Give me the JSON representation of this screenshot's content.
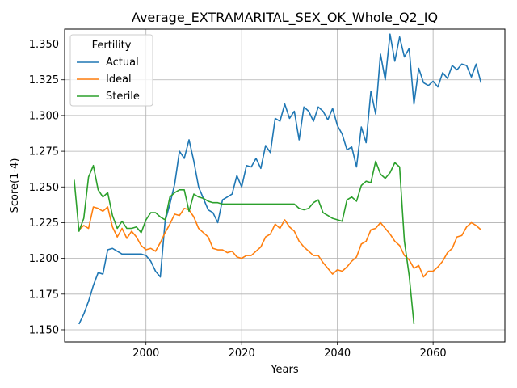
{
  "chart_data": {
    "type": "line",
    "title": "Average_EXTRAMARITAL_SEX_OK_Whole_Q2_IQ",
    "xlabel": "Years",
    "ylabel": "Score(1-4)",
    "xlim": [
      1983.0,
      2075.0
    ],
    "ylim": [
      1.1415,
      1.3605
    ],
    "xticks": [
      2000,
      2020,
      2040,
      2060
    ],
    "yticks": [
      1.15,
      1.175,
      1.2,
      1.225,
      1.25,
      1.275,
      1.3,
      1.325,
      1.35
    ],
    "ytick_labels": [
      "1.150",
      "1.175",
      "1.200",
      "1.225",
      "1.250",
      "1.275",
      "1.300",
      "1.325",
      "1.350"
    ],
    "grid": true,
    "legend": {
      "title": "Fertility",
      "placement": "top-left"
    },
    "series": [
      {
        "name": "Actual",
        "color": "#1f77b4",
        "x": [
          1986,
          1987,
          1988,
          1989,
          1990,
          1991,
          1992,
          1993,
          1994,
          1995,
          1996,
          1997,
          1998,
          1999,
          2000,
          2001,
          2002,
          2003,
          2004,
          2005,
          2006,
          2007,
          2008,
          2009,
          2010,
          2011,
          2012,
          2013,
          2014,
          2015,
          2016,
          2017,
          2018,
          2019,
          2020,
          2021,
          2022,
          2023,
          2024,
          2025,
          2026,
          2027,
          2028,
          2029,
          2030,
          2031,
          2032,
          2033,
          2034,
          2035,
          2036,
          2037,
          2038,
          2039,
          2040,
          2041,
          2042,
          2043,
          2044,
          2045,
          2046,
          2047,
          2048,
          2049,
          2050,
          2051,
          2052,
          2053,
          2054,
          2055,
          2056,
          2057,
          2058,
          2059,
          2060,
          2061,
          2062,
          2063,
          2064,
          2065,
          2066,
          2067,
          2068,
          2069,
          2070
        ],
        "values": [
          1.154,
          1.161,
          1.17,
          1.181,
          1.19,
          1.189,
          1.206,
          1.207,
          1.205,
          1.203,
          1.203,
          1.203,
          1.203,
          1.203,
          1.202,
          1.198,
          1.191,
          1.187,
          1.226,
          1.238,
          1.252,
          1.275,
          1.27,
          1.283,
          1.268,
          1.25,
          1.242,
          1.234,
          1.232,
          1.225,
          1.241,
          1.243,
          1.245,
          1.258,
          1.25,
          1.265,
          1.264,
          1.27,
          1.263,
          1.279,
          1.274,
          1.298,
          1.296,
          1.308,
          1.298,
          1.303,
          1.283,
          1.306,
          1.303,
          1.296,
          1.306,
          1.303,
          1.297,
          1.305,
          1.293,
          1.287,
          1.276,
          1.278,
          1.264,
          1.292,
          1.281,
          1.317,
          1.301,
          1.343,
          1.325,
          1.357,
          1.338,
          1.355,
          1.341,
          1.347,
          1.308,
          1.333,
          1.323,
          1.321,
          1.324,
          1.32,
          1.33,
          1.326,
          1.335,
          1.332,
          1.336,
          1.335,
          1.327,
          1.336,
          1.323
        ]
      },
      {
        "name": "Ideal",
        "color": "#ff7f0e",
        "x": [
          1986,
          1987,
          1988,
          1989,
          1990,
          1991,
          1992,
          1993,
          1994,
          1995,
          1996,
          1997,
          1998,
          1999,
          2000,
          2001,
          2002,
          2003,
          2004,
          2005,
          2006,
          2007,
          2008,
          2009,
          2010,
          2011,
          2012,
          2013,
          2014,
          2015,
          2016,
          2017,
          2018,
          2019,
          2020,
          2021,
          2022,
          2023,
          2024,
          2025,
          2026,
          2027,
          2028,
          2029,
          2030,
          2031,
          2032,
          2033,
          2034,
          2035,
          2036,
          2037,
          2038,
          2039,
          2040,
          2041,
          2042,
          2043,
          2044,
          2045,
          2046,
          2047,
          2048,
          2049,
          2050,
          2051,
          2052,
          2053,
          2054,
          2055,
          2056,
          2057,
          2058,
          2059,
          2060,
          2061,
          2062,
          2063,
          2064,
          2065,
          2066,
          2067,
          2068,
          2069,
          2070
        ],
        "values": [
          1.22,
          1.223,
          1.221,
          1.236,
          1.235,
          1.233,
          1.236,
          1.222,
          1.215,
          1.221,
          1.214,
          1.219,
          1.215,
          1.209,
          1.206,
          1.207,
          1.205,
          1.211,
          1.218,
          1.224,
          1.231,
          1.23,
          1.235,
          1.234,
          1.229,
          1.221,
          1.218,
          1.215,
          1.207,
          1.206,
          1.206,
          1.204,
          1.205,
          1.201,
          1.2,
          1.202,
          1.202,
          1.205,
          1.208,
          1.215,
          1.217,
          1.224,
          1.221,
          1.227,
          1.222,
          1.219,
          1.212,
          1.208,
          1.205,
          1.202,
          1.202,
          1.197,
          1.193,
          1.189,
          1.192,
          1.191,
          1.194,
          1.198,
          1.201,
          1.21,
          1.212,
          1.22,
          1.221,
          1.225,
          1.221,
          1.217,
          1.212,
          1.209,
          1.202,
          1.199,
          1.193,
          1.195,
          1.187,
          1.191,
          1.191,
          1.194,
          1.198,
          1.204,
          1.207,
          1.215,
          1.216,
          1.222,
          1.225,
          1.223,
          1.22
        ]
      },
      {
        "name": "Sterile",
        "color": "#2ca02c",
        "x": [
          1985,
          1986,
          1987,
          1988,
          1989,
          1990,
          1991,
          1992,
          1993,
          1994,
          1995,
          1996,
          1997,
          1998,
          1999,
          2000,
          2001,
          2002,
          2003,
          2004,
          2005,
          2006,
          2007,
          2008,
          2009,
          2010,
          2011,
          2012,
          2013,
          2014,
          2015,
          2016,
          2017,
          2018,
          2019,
          2020,
          2021,
          2022,
          2023,
          2024,
          2025,
          2026,
          2027,
          2028,
          2029,
          2030,
          2031,
          2032,
          2033,
          2034,
          2035,
          2036,
          2037,
          2038,
          2039,
          2040,
          2041,
          2042,
          2043,
          2044,
          2045,
          2046,
          2047,
          2048,
          2049,
          2050,
          2051,
          2052,
          2053,
          2054,
          2055,
          2056
        ],
        "values": [
          1.255,
          1.219,
          1.228,
          1.257,
          1.265,
          1.248,
          1.243,
          1.246,
          1.23,
          1.221,
          1.226,
          1.221,
          1.221,
          1.222,
          1.218,
          1.227,
          1.232,
          1.232,
          1.229,
          1.227,
          1.243,
          1.246,
          1.248,
          1.248,
          1.233,
          1.245,
          1.243,
          1.242,
          1.24,
          1.239,
          1.239,
          1.238,
          1.238,
          1.238,
          1.238,
          1.238,
          1.238,
          1.238,
          1.238,
          1.238,
          1.238,
          1.238,
          1.238,
          1.238,
          1.238,
          1.238,
          1.238,
          1.235,
          1.234,
          1.235,
          1.239,
          1.241,
          1.232,
          1.23,
          1.228,
          1.227,
          1.226,
          1.241,
          1.243,
          1.24,
          1.251,
          1.254,
          1.253,
          1.268,
          1.259,
          1.256,
          1.26,
          1.267,
          1.264,
          1.212,
          1.188,
          1.154
        ]
      }
    ]
  }
}
